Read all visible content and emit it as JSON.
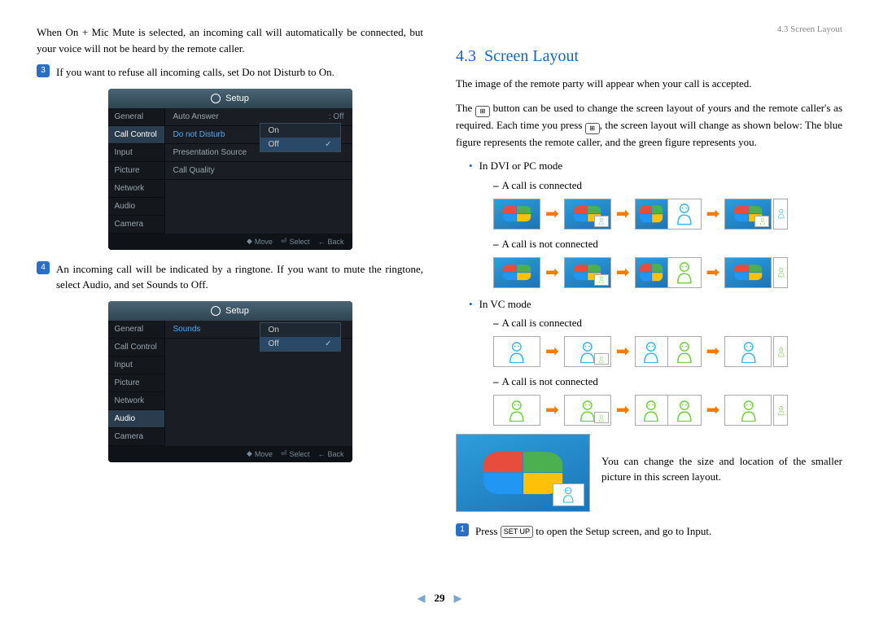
{
  "header": "4.3 Screen Layout",
  "left": {
    "intro": "When On + Mic Mute is selected, an incoming call will automatically be connected, but your voice will not be heard by the remote caller.",
    "item3": "If you want to refuse all incoming calls, set Do not Disturb to On.",
    "item4": "An incoming call will be indicated by a ringtone. If you want to mute the ringtone, select Audio, and set Sounds to Off.",
    "setup_title": "Setup",
    "sidebar": [
      "General",
      "Call Control",
      "Input",
      "Picture",
      "Network",
      "Audio",
      "Camera"
    ],
    "shot1_sel": "Call Control",
    "shot1_opts": [
      {
        "label": "Auto Answer",
        "val": ": Off"
      },
      {
        "label": "Do not Disturb",
        "sel": true
      },
      {
        "label": "Presentation Source"
      },
      {
        "label": "Call Quality"
      }
    ],
    "shot1_popup": [
      "On",
      "Off"
    ],
    "shot1_popup_sel": "Off",
    "shot2_sel": "Audio",
    "shot2_opts": [
      {
        "label": "Sounds",
        "sel": true
      }
    ],
    "shot2_popup": [
      "On",
      "Off"
    ],
    "shot2_popup_sel": "Off",
    "foot": {
      "move": "Move",
      "select": "Select",
      "back": "Back"
    }
  },
  "right": {
    "title_num": "4.3",
    "title_text": "Screen Layout",
    "p1": "The image of the remote party will appear when your call is accepted.",
    "p2a": "The ",
    "p2b": " button can be used to change the screen layout of yours and the remote caller's as required. Each time you press ",
    "p2c": ", the screen layout will change as shown below: The blue figure represents the remote caller, and the green figure represents you.",
    "mode1": "In DVI or PC mode",
    "mode2": "In VC mode",
    "sub_conn": "A call is connected",
    "sub_notconn": "A call is not connected",
    "note": "You can change the size and location of the smaller picture in this screen layout.",
    "step1a": "Press ",
    "step1b": " to open the Setup screen, and go to Input.",
    "setup_btn": "SET UP"
  },
  "colors": {
    "blue_person": "#35b7e8",
    "green_person": "#6fce3c",
    "arrow": "#f57c00",
    "section": "#1565c0"
  },
  "page_num": "29"
}
